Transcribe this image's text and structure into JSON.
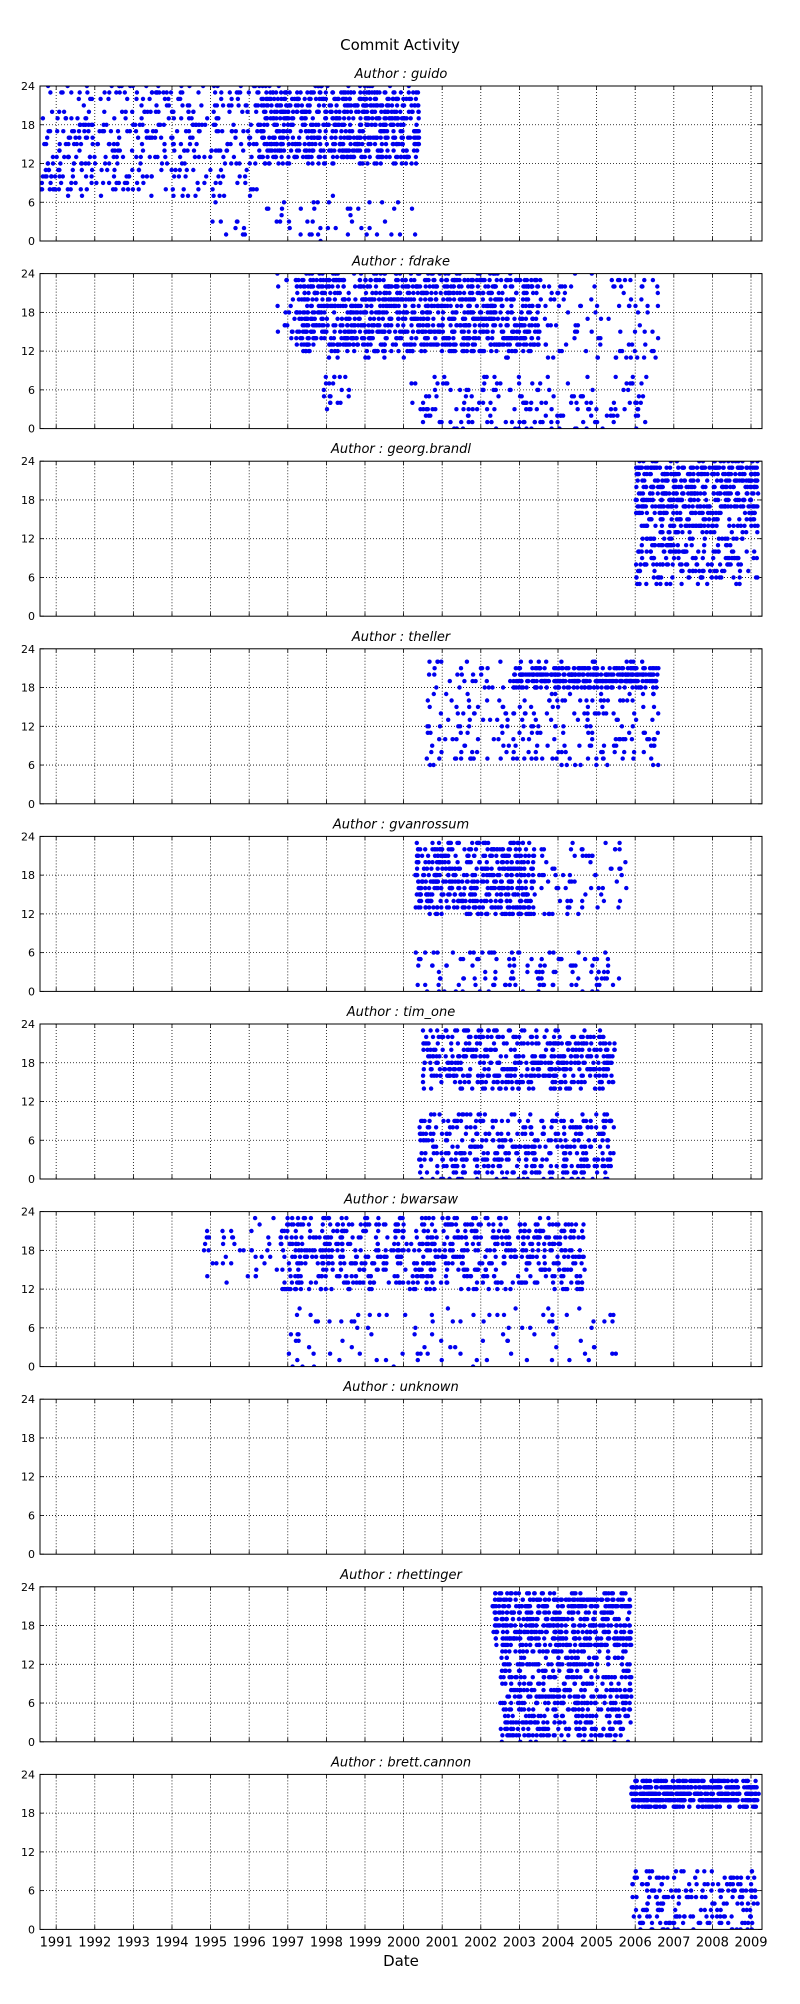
{
  "figure": {
    "title": "Commit Activity",
    "xlabel": "Date"
  },
  "colors": {
    "points": "#0000ee",
    "grid": "#000000",
    "axis": "#000000",
    "background": "#ffffff"
  },
  "chart_data": {
    "type": "scatter",
    "layout": "vertical-stack",
    "subplot_count": 10,
    "x_axis": {
      "kind": "date",
      "label": "Date",
      "range": [
        "1990-08-01",
        "2009-04-15"
      ],
      "tick_labels": [
        "1991",
        "1992",
        "1993",
        "1994",
        "1995",
        "1996",
        "1997",
        "1998",
        "1999",
        "2000",
        "2001",
        "2002",
        "2003",
        "2004",
        "2005",
        "2006",
        "2007",
        "2008",
        "2009"
      ],
      "tick_labels_on_bottom_only": true
    },
    "y_axis": {
      "label": "",
      "range": [
        0,
        24
      ],
      "ticks": [
        0,
        6,
        12,
        18,
        24
      ]
    },
    "grid": true,
    "grid_style": "dotted",
    "panels": [
      {
        "title": "Author : guido",
        "active": [
          1990.6,
          2000.4
        ],
        "clusters": [
          {
            "x": [
              1990.6,
              1996.2
            ],
            "y": [
              7,
              24
            ],
            "n": 430
          },
          {
            "x": [
              1996.2,
              2000.4
            ],
            "y": [
              12,
              24
            ],
            "n": 700
          },
          {
            "x": [
              1995.0,
              2000.4
            ],
            "y": [
              0,
              7
            ],
            "n": 55
          }
        ]
      },
      {
        "title": "Author : fdrake",
        "active": [
          1996.7,
          2006.6
        ],
        "clusters": [
          {
            "x": [
              1997.2,
              2003.5
            ],
            "y": [
              12,
              24
            ],
            "n": 900
          },
          {
            "x": [
              1996.7,
              2006.6
            ],
            "y": [
              11,
              24
            ],
            "n": 300
          },
          {
            "x": [
              1997.9,
              1998.6
            ],
            "y": [
              2,
              8
            ],
            "n": 20
          },
          {
            "x": [
              2000.2,
              2006.3
            ],
            "y": [
              0,
              8
            ],
            "n": 170
          }
        ]
      },
      {
        "title": "Author : georg.brandl",
        "active": [
          2006.0,
          2009.2
        ],
        "clusters": [
          {
            "x": [
              2006.0,
              2009.2
            ],
            "y": [
              16,
              24
            ],
            "n": 420
          },
          {
            "x": [
              2006.0,
              2009.2
            ],
            "y": [
              5,
              16
            ],
            "n": 280
          }
        ]
      },
      {
        "title": "Author : theller",
        "active": [
          2000.6,
          2006.6
        ],
        "clusters": [
          {
            "x": [
              2002.8,
              2006.6
            ],
            "y": [
              18,
              21
            ],
            "n": 300
          },
          {
            "x": [
              2000.6,
              2006.6
            ],
            "y": [
              6,
              22
            ],
            "n": 300
          }
        ]
      },
      {
        "title": "Author : gvanrossum",
        "active": [
          2000.3,
          2005.8
        ],
        "clusters": [
          {
            "x": [
              2000.3,
              2003.4
            ],
            "y": [
              12,
              23
            ],
            "n": 480
          },
          {
            "x": [
              2003.4,
              2005.8
            ],
            "y": [
              12,
              23
            ],
            "n": 70
          },
          {
            "x": [
              2000.3,
              2005.8
            ],
            "y": [
              0,
              6
            ],
            "n": 120
          }
        ]
      },
      {
        "title": "Author : tim_one",
        "active": [
          2000.4,
          2005.6
        ],
        "clusters": [
          {
            "x": [
              2000.5,
              2005.5
            ],
            "y": [
              14,
              23
            ],
            "n": 480
          },
          {
            "x": [
              2000.4,
              2005.5
            ],
            "y": [
              0,
              10
            ],
            "n": 400
          }
        ]
      },
      {
        "title": "Author : bwarsaw",
        "active": [
          1994.8,
          2005.8
        ],
        "clusters": [
          {
            "x": [
              1994.8,
              1996.8
            ],
            "y": [
              13,
              23
            ],
            "n": 40
          },
          {
            "x": [
              1996.8,
              2004.7
            ],
            "y": [
              12,
              23
            ],
            "n": 700
          },
          {
            "x": [
              1997.0,
              2005.5
            ],
            "y": [
              0,
              9
            ],
            "n": 100
          }
        ]
      },
      {
        "title": "Author : unknown",
        "active": [],
        "clusters": []
      },
      {
        "title": "Author : rhettinger",
        "active": [
          2002.3,
          2005.9
        ],
        "clusters": [
          {
            "x": [
              2002.3,
              2005.9
            ],
            "y": [
              15,
              23
            ],
            "n": 520
          },
          {
            "x": [
              2002.5,
              2005.9
            ],
            "y": [
              0,
              15
            ],
            "n": 520
          }
        ]
      },
      {
        "title": "Author : brett.cannon",
        "active": [
          2005.8,
          2009.2
        ],
        "clusters": [
          {
            "x": [
              2005.9,
              2009.2
            ],
            "y": [
              19,
              23
            ],
            "n": 480
          },
          {
            "x": [
              2005.9,
              2009.2
            ],
            "y": [
              0,
              9
            ],
            "n": 200
          }
        ]
      }
    ]
  }
}
